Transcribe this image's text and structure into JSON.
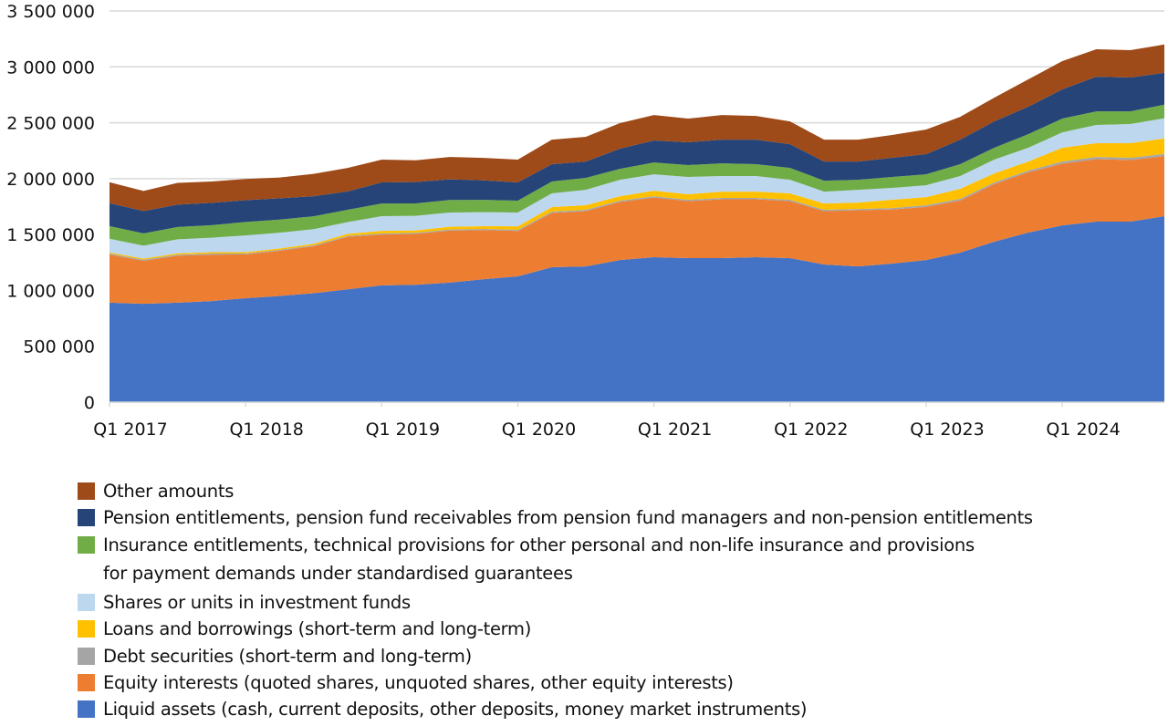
{
  "chart_data": {
    "type": "area",
    "stacked": true,
    "title": "",
    "xlabel": "",
    "ylabel": "",
    "ylim": [
      0,
      3500000
    ],
    "yticks": [
      0,
      500000,
      1000000,
      1500000,
      2000000,
      2500000,
      3000000,
      3500000
    ],
    "ytick_labels": [
      "0",
      "500 000",
      "1 000 000",
      "1 500 000",
      "2 000 000",
      "2 500 000",
      "3 000 000",
      "3 500 000"
    ],
    "grid": "horizontal",
    "legend_position": "bottom",
    "x": [
      "Q1 2017",
      "Q2 2017",
      "Q3 2017",
      "Q4 2017",
      "Q1 2018",
      "Q2 2018",
      "Q3 2018",
      "Q4 2018",
      "Q1 2019",
      "Q2 2019",
      "Q3 2019",
      "Q4 2019",
      "Q1 2020",
      "Q2 2020",
      "Q3 2020",
      "Q4 2020",
      "Q1 2021",
      "Q2 2021",
      "Q3 2021",
      "Q4 2021",
      "Q1 2022",
      "Q2 2022",
      "Q3 2022",
      "Q4 2022",
      "Q1 2023",
      "Q2 2023",
      "Q3 2023",
      "Q4 2023",
      "Q1 2024",
      "Q2 2024",
      "Q3 2024",
      "Q4 2024"
    ],
    "xtick_labels": [
      "Q1 2017",
      "Q1 2018",
      "Q1 2019",
      "Q1 2020",
      "Q1 2021",
      "Q1 2022",
      "Q1 2023",
      "Q1 2024"
    ],
    "series": [
      {
        "name": "Liquid assets (cash, current deposits, other deposits, money market instruments)",
        "color": "#4472C4",
        "values": [
          890000,
          880000,
          890000,
          905000,
          930000,
          950000,
          975000,
          1010000,
          1045000,
          1050000,
          1070000,
          1100000,
          1126000,
          1207000,
          1215000,
          1272000,
          1297000,
          1289000,
          1289000,
          1297000,
          1289000,
          1232000,
          1215000,
          1240000,
          1272000,
          1338000,
          1436000,
          1517000,
          1582000,
          1615000,
          1615000,
          1664000
        ]
      },
      {
        "name": "Equity interests (quoted shares, unquoted shares, other equity interests)",
        "color": "#ED7D31",
        "values": [
          430000,
          385000,
          420000,
          415000,
          392000,
          405000,
          420000,
          470000,
          454000,
          455000,
          465000,
          440000,
          406000,
          486000,
          494000,
          519000,
          534000,
          510000,
          526000,
          518000,
          510000,
          477000,
          502000,
          485000,
          475000,
          466000,
          515000,
          540000,
          551000,
          559000,
          551000,
          537000
        ]
      },
      {
        "name": "Debt securities (short-term and long-term)",
        "color": "#A5A5A5",
        "values": [
          10000,
          10000,
          10000,
          10000,
          8000,
          8000,
          8000,
          8000,
          10000,
          10000,
          10000,
          10000,
          10000,
          12000,
          12000,
          12000,
          12000,
          12000,
          12000,
          12000,
          12000,
          12000,
          12000,
          12000,
          15000,
          15000,
          15000,
          15000,
          20000,
          20000,
          20000,
          20000
        ]
      },
      {
        "name": "Loans and borrowings (short-term and long-term)",
        "color": "#FFC000",
        "values": [
          10000,
          10000,
          12000,
          12000,
          12000,
          13000,
          15000,
          18000,
          24000,
          22000,
          24000,
          25000,
          32000,
          41000,
          41000,
          40000,
          49000,
          49000,
          57000,
          57000,
          57000,
          57000,
          57000,
          74000,
          73000,
          90000,
          81000,
          81000,
          123000,
          123000,
          131000,
          139000
        ]
      },
      {
        "name": "Shares or units in investment funds",
        "color": "#BDD7EE",
        "values": [
          122000,
          115000,
          125000,
          130000,
          150000,
          140000,
          130000,
          105000,
          131000,
          130000,
          128000,
          125000,
          123000,
          122000,
          138000,
          147000,
          147000,
          155000,
          139000,
          139000,
          122000,
          106000,
          114000,
          106000,
          106000,
          114000,
          123000,
          123000,
          138000,
          163000,
          171000,
          180000
        ]
      },
      {
        "name": "Insurance entitlements, technical provisions for other personal and non-life insurance and provisions for payment demands under standardised guarantees",
        "color": "#70AD47",
        "values": [
          114000,
          110000,
          110000,
          112000,
          120000,
          118000,
          115000,
          110000,
          114000,
          112000,
          112000,
          110000,
          106000,
          106000,
          107000,
          98000,
          106000,
          106000,
          114000,
          106000,
          106000,
          98000,
          90000,
          98000,
          98000,
          106000,
          106000,
          122000,
          123000,
          122000,
          114000,
          122000
        ]
      },
      {
        "name": "Pension entitlements, pension fund receivables from pension fund managers and non-pension entitlements",
        "color": "#264478",
        "values": [
          204000,
          200000,
          200000,
          200000,
          195000,
          190000,
          180000,
          165000,
          188000,
          190000,
          185000,
          175000,
          163000,
          155000,
          146000,
          180000,
          196000,
          204000,
          212000,
          220000,
          212000,
          171000,
          163000,
          171000,
          180000,
          220000,
          236000,
          245000,
          261000,
          310000,
          302000,
          285000
        ]
      },
      {
        "name": "Other amounts",
        "color": "#9E4A19",
        "values": [
          188000,
          180000,
          195000,
          190000,
          190000,
          186000,
          200000,
          210000,
          204000,
          195000,
          200000,
          200000,
          204000,
          220000,
          221000,
          228000,
          228000,
          212000,
          220000,
          212000,
          204000,
          196000,
          196000,
          204000,
          220000,
          204000,
          212000,
          245000,
          253000,
          245000,
          245000,
          253000
        ]
      }
    ]
  },
  "legend": {
    "items": [
      {
        "lines": [
          "Other amounts"
        ],
        "color": "#9E4A19"
      },
      {
        "lines": [
          "Pension entitlements, pension fund receivables from pension fund managers and non-pension entitlements"
        ],
        "color": "#264478"
      },
      {
        "lines": [
          "Insurance entitlements, technical provisions for other personal and non-life insurance and provisions",
          "for payment demands under standardised guarantees"
        ],
        "color": "#70AD47"
      },
      {
        "lines": [
          "Shares or units in investment funds"
        ],
        "color": "#BDD7EE"
      },
      {
        "lines": [
          "Loans and borrowings (short-term and long-term)"
        ],
        "color": "#FFC000"
      },
      {
        "lines": [
          "Debt securities (short-term and long-term)"
        ],
        "color": "#A5A5A5"
      },
      {
        "lines": [
          "Equity interests (quoted shares, unquoted shares, other equity interests)"
        ],
        "color": "#ED7D31"
      },
      {
        "lines": [
          "Liquid assets (cash, current deposits, other deposits, money market instruments)"
        ],
        "color": "#4472C4"
      }
    ]
  }
}
